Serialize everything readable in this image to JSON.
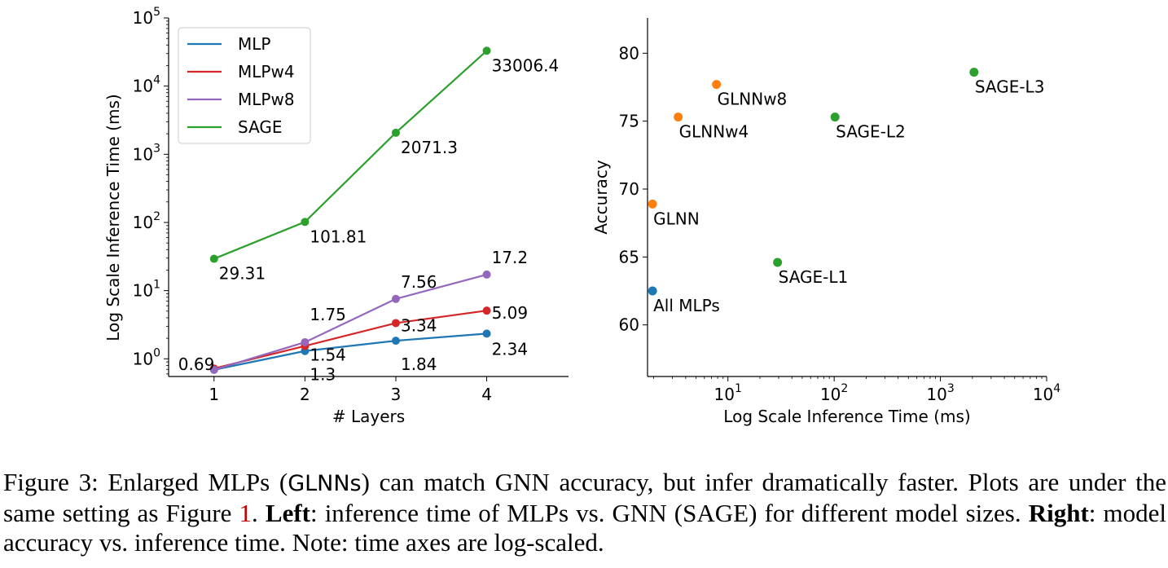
{
  "chart_data": [
    {
      "type": "line",
      "title": "",
      "xlabel": "# Layers",
      "ylabel": "Log Scale Inference Time (ms)",
      "yscale": "log",
      "x": [
        1,
        2,
        3,
        4
      ],
      "xlim": [
        0.5,
        4.9
      ],
      "ylim": [
        0.55,
        100000
      ],
      "xticks": [
        "1",
        "2",
        "3",
        "4"
      ],
      "yticks": [
        {
          "base": "10",
          "exp": "0",
          "value": 1
        },
        {
          "base": "10",
          "exp": "1",
          "value": 10
        },
        {
          "base": "10",
          "exp": "2",
          "value": 100
        },
        {
          "base": "10",
          "exp": "3",
          "value": 1000
        },
        {
          "base": "10",
          "exp": "4",
          "value": 10000
        },
        {
          "base": "10",
          "exp": "5",
          "value": 100000
        }
      ],
      "legend_position": "top-left",
      "series": [
        {
          "name": "MLP",
          "color": "#1f77b4",
          "values": [
            0.69,
            1.3,
            1.84,
            2.34
          ],
          "labels": [
            "",
            "1.3",
            "1.84",
            "2.34"
          ]
        },
        {
          "name": "MLPw4",
          "color": "#d62728",
          "values": [
            0.72,
            1.54,
            3.34,
            5.09
          ],
          "labels": [
            "",
            "1.54",
            "3.34",
            "5.09"
          ]
        },
        {
          "name": "MLPw8",
          "color": "#9467bd",
          "values": [
            0.69,
            1.75,
            7.56,
            17.2
          ],
          "labels": [
            "0.69",
            "1.75",
            "7.56",
            "17.2"
          ]
        },
        {
          "name": "SAGE",
          "color": "#2ca02c",
          "values": [
            29.31,
            101.81,
            2071.3,
            33006.4
          ],
          "labels": [
            "29.31",
            "101.81",
            "2071.3",
            "33006.4"
          ]
        }
      ]
    },
    {
      "type": "scatter",
      "title": "",
      "xlabel": "Log Scale Inference Time (ms)",
      "ylabel": "Accuracy",
      "xscale": "log",
      "xlim": [
        1.75,
        10000
      ],
      "ylim": [
        56.2,
        82.6
      ],
      "xticks": [
        {
          "base": "10",
          "exp": "1",
          "value": 10
        },
        {
          "base": "10",
          "exp": "2",
          "value": 100
        },
        {
          "base": "10",
          "exp": "3",
          "value": 1000
        },
        {
          "base": "10",
          "exp": "4",
          "value": 10000
        }
      ],
      "yticks": [
        "60",
        "65",
        "70",
        "75",
        "80"
      ],
      "points": [
        {
          "label": "All MLPs",
          "x": 1.95,
          "y": 62.5,
          "color": "#1f77b4"
        },
        {
          "label": "GLNN",
          "x": 1.95,
          "y": 68.9,
          "color": "#ff7f0e"
        },
        {
          "label": "GLNNw4",
          "x": 3.4,
          "y": 75.3,
          "color": "#ff7f0e"
        },
        {
          "label": "GLNNw8",
          "x": 7.8,
          "y": 77.7,
          "color": "#ff7f0e"
        },
        {
          "label": "SAGE-L1",
          "x": 29.31,
          "y": 64.6,
          "color": "#2ca02c"
        },
        {
          "label": "SAGE-L2",
          "x": 101.81,
          "y": 75.3,
          "color": "#2ca02c"
        },
        {
          "label": "SAGE-L3",
          "x": 2071.3,
          "y": 78.6,
          "color": "#2ca02c"
        }
      ]
    }
  ],
  "caption": {
    "prefix": "Figure 3: Enlarged MLPs (",
    "glnn": "GLNNs",
    "part2": ") can match GNN accuracy, but infer dramatically faster. Plots are under the same setting as Figure ",
    "ref": "1",
    "part3": ". ",
    "left_bold": "Left",
    "part4": ": inference time of MLPs vs. GNN (SAGE) for different model sizes. ",
    "right_bold": "Right",
    "part5": ": model accuracy vs. inference time. Note: time axes are log-scaled."
  }
}
